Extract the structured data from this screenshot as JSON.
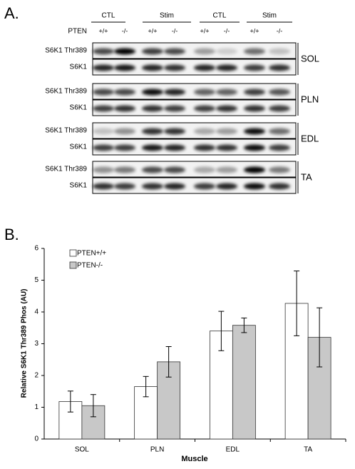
{
  "panel_a": {
    "label": "A.",
    "groups": [
      "CTL",
      "Stim",
      "CTL",
      "Stim"
    ],
    "row_label": "PTEN",
    "genotypes": [
      "+/+",
      "-/-",
      "+/+",
      "-/-",
      "+/+",
      "-/-",
      "+/+",
      "-/-"
    ],
    "muscles": [
      {
        "name": "SOL",
        "rows": [
          "S6K1 Thr389",
          "S6K1"
        ]
      },
      {
        "name": "PLN",
        "rows": [
          "S6K1 Thr389",
          "S6K1"
        ]
      },
      {
        "name": "EDL",
        "rows": [
          "S6K1 Thr389",
          "S6K1"
        ]
      },
      {
        "name": "TA",
        "rows": [
          "S6K1 Thr389",
          "S6K1"
        ]
      }
    ]
  },
  "chart_data": {
    "type": "bar",
    "label": "B.",
    "x_label": "Muscle",
    "y_label": "Relative S6K1 Thr389 Phos (AU)",
    "categories": [
      "SOL",
      "PLN",
      "EDL",
      "TA"
    ],
    "series": [
      {
        "name": "PTEN+/+",
        "color": "#ffffff",
        "values": [
          1.18,
          1.65,
          3.4,
          4.27
        ],
        "errors": [
          0.33,
          0.32,
          0.62,
          1.02
        ]
      },
      {
        "name": "PTEN-/-",
        "color": "#c8c8c8",
        "values": [
          1.05,
          2.43,
          3.58,
          3.2
        ],
        "errors": [
          0.35,
          0.48,
          0.23,
          0.93
        ]
      }
    ],
    "ylim": [
      0,
      6
    ],
    "yticks": [
      0,
      1,
      2,
      3,
      4,
      5,
      6
    ],
    "grid": false,
    "legend": "top-left"
  }
}
